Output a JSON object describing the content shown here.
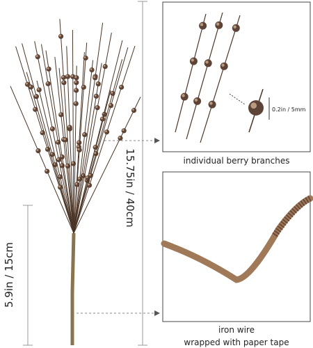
{
  "labels": {
    "total_length": "15.75in / 40cm",
    "stem_length": "5.9in / 15cm",
    "berry_size": "0.2in / 5mm"
  },
  "panels": [
    {
      "caption": [
        "individual berry branches"
      ]
    },
    {
      "caption": [
        "iron wire",
        "wrapped with paper tape"
      ]
    }
  ]
}
